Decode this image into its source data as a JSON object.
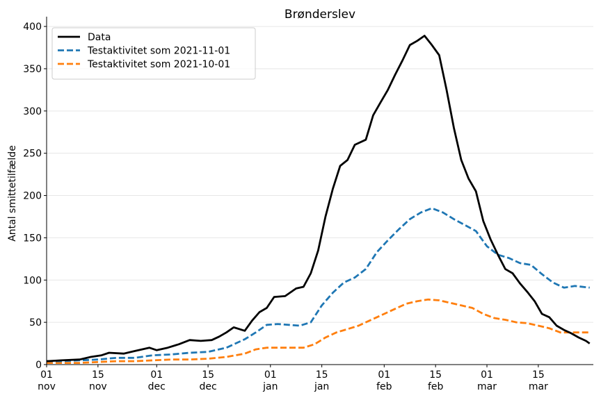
{
  "chart_data": {
    "type": "line",
    "title": "Brønderslev",
    "ylabel": "Antal smittetilfælde",
    "xlabel": "",
    "xlim": [
      "2021-11-01",
      "2022-03-30"
    ],
    "ylim": [
      0,
      405
    ],
    "yticks": [
      0,
      50,
      100,
      150,
      200,
      250,
      300,
      350,
      400
    ],
    "xticks": [
      {
        "date": "2021-11-01",
        "day": "01",
        "month": "nov"
      },
      {
        "date": "2021-11-15",
        "day": "15",
        "month": "nov"
      },
      {
        "date": "2021-12-01",
        "day": "01",
        "month": "dec"
      },
      {
        "date": "2021-12-15",
        "day": "15",
        "month": "dec"
      },
      {
        "date": "2022-01-01",
        "day": "01",
        "month": "jan"
      },
      {
        "date": "2022-01-15",
        "day": "15",
        "month": "jan"
      },
      {
        "date": "2022-02-01",
        "day": "01",
        "month": "feb"
      },
      {
        "date": "2022-02-15",
        "day": "15",
        "month": "feb"
      },
      {
        "date": "2022-03-01",
        "day": "01",
        "month": "mar"
      },
      {
        "date": "2022-03-15",
        "day": "15",
        "month": "mar"
      }
    ],
    "grid": "horizontal",
    "legend_position": "top-left",
    "series": [
      {
        "name": "Data",
        "color": "#000000",
        "style": "solid",
        "points": [
          [
            "2021-11-01",
            4
          ],
          [
            "2021-11-05",
            5
          ],
          [
            "2021-11-10",
            6
          ],
          [
            "2021-11-13",
            9
          ],
          [
            "2021-11-16",
            11
          ],
          [
            "2021-11-18",
            14
          ],
          [
            "2021-11-22",
            13
          ],
          [
            "2021-11-25",
            16
          ],
          [
            "2021-11-29",
            20
          ],
          [
            "2021-12-01",
            17
          ],
          [
            "2021-12-04",
            20
          ],
          [
            "2021-12-07",
            24
          ],
          [
            "2021-12-10",
            29
          ],
          [
            "2021-12-13",
            28
          ],
          [
            "2021-12-16",
            29
          ],
          [
            "2021-12-18",
            33
          ],
          [
            "2021-12-20",
            38
          ],
          [
            "2021-12-22",
            44
          ],
          [
            "2021-12-25",
            40
          ],
          [
            "2021-12-27",
            52
          ],
          [
            "2021-12-29",
            62
          ],
          [
            "2021-12-31",
            67
          ],
          [
            "2022-01-02",
            80
          ],
          [
            "2022-01-05",
            81
          ],
          [
            "2022-01-08",
            90
          ],
          [
            "2022-01-10",
            92
          ],
          [
            "2022-01-12",
            108
          ],
          [
            "2022-01-14",
            135
          ],
          [
            "2022-01-16",
            175
          ],
          [
            "2022-01-18",
            208
          ],
          [
            "2022-01-20",
            235
          ],
          [
            "2022-01-22",
            242
          ],
          [
            "2022-01-24",
            260
          ],
          [
            "2022-01-27",
            266
          ],
          [
            "2022-01-29",
            295
          ],
          [
            "2022-01-31",
            310
          ],
          [
            "2022-02-02",
            325
          ],
          [
            "2022-02-04",
            343
          ],
          [
            "2022-02-06",
            360
          ],
          [
            "2022-02-08",
            378
          ],
          [
            "2022-02-10",
            383
          ],
          [
            "2022-02-12",
            389
          ],
          [
            "2022-02-14",
            378
          ],
          [
            "2022-02-16",
            366
          ],
          [
            "2022-02-18",
            325
          ],
          [
            "2022-02-20",
            280
          ],
          [
            "2022-02-22",
            242
          ],
          [
            "2022-02-24",
            220
          ],
          [
            "2022-02-26",
            205
          ],
          [
            "2022-02-28",
            170
          ],
          [
            "2022-03-02",
            148
          ],
          [
            "2022-03-04",
            130
          ],
          [
            "2022-03-06",
            113
          ],
          [
            "2022-03-08",
            108
          ],
          [
            "2022-03-10",
            96
          ],
          [
            "2022-03-12",
            86
          ],
          [
            "2022-03-14",
            75
          ],
          [
            "2022-03-16",
            60
          ],
          [
            "2022-03-18",
            56
          ],
          [
            "2022-03-20",
            46
          ],
          [
            "2022-03-22",
            41
          ],
          [
            "2022-03-24",
            37
          ],
          [
            "2022-03-26",
            32
          ],
          [
            "2022-03-28",
            28
          ],
          [
            "2022-03-29",
            25
          ]
        ]
      },
      {
        "name": "Testaktivitet som 2021-11-01",
        "color": "#1f77b4",
        "style": "dashed",
        "points": [
          [
            "2021-11-01",
            4
          ],
          [
            "2021-11-05",
            4
          ],
          [
            "2021-11-10",
            5
          ],
          [
            "2021-11-15",
            6
          ],
          [
            "2021-11-20",
            8
          ],
          [
            "2021-11-25",
            8
          ],
          [
            "2021-11-30",
            11
          ],
          [
            "2021-12-05",
            12
          ],
          [
            "2021-12-10",
            14
          ],
          [
            "2021-12-15",
            15
          ],
          [
            "2021-12-20",
            20
          ],
          [
            "2021-12-25",
            30
          ],
          [
            "2021-12-28",
            38
          ],
          [
            "2021-12-31",
            47
          ],
          [
            "2022-01-03",
            48
          ],
          [
            "2022-01-06",
            47
          ],
          [
            "2022-01-09",
            46
          ],
          [
            "2022-01-12",
            50
          ],
          [
            "2022-01-15",
            70
          ],
          [
            "2022-01-18",
            85
          ],
          [
            "2022-01-21",
            97
          ],
          [
            "2022-01-24",
            103
          ],
          [
            "2022-01-27",
            113
          ],
          [
            "2022-01-30",
            133
          ],
          [
            "2022-02-02",
            147
          ],
          [
            "2022-02-05",
            160
          ],
          [
            "2022-02-08",
            172
          ],
          [
            "2022-02-11",
            180
          ],
          [
            "2022-02-14",
            185
          ],
          [
            "2022-02-17",
            180
          ],
          [
            "2022-02-20",
            172
          ],
          [
            "2022-02-23",
            165
          ],
          [
            "2022-02-26",
            158
          ],
          [
            "2022-03-01",
            140
          ],
          [
            "2022-03-04",
            130
          ],
          [
            "2022-03-07",
            126
          ],
          [
            "2022-03-10",
            120
          ],
          [
            "2022-03-13",
            118
          ],
          [
            "2022-03-16",
            107
          ],
          [
            "2022-03-19",
            97
          ],
          [
            "2022-03-22",
            91
          ],
          [
            "2022-03-25",
            93
          ],
          [
            "2022-03-29",
            91
          ]
        ]
      },
      {
        "name": "Testaktivitet som 2021-10-01",
        "color": "#ff7f0e",
        "style": "dashed",
        "points": [
          [
            "2021-11-01",
            2
          ],
          [
            "2021-11-10",
            2
          ],
          [
            "2021-11-15",
            3
          ],
          [
            "2021-11-20",
            4
          ],
          [
            "2021-11-25",
            4
          ],
          [
            "2021-11-30",
            5
          ],
          [
            "2021-12-05",
            6
          ],
          [
            "2021-12-10",
            6
          ],
          [
            "2021-12-15",
            7
          ],
          [
            "2021-12-20",
            9
          ],
          [
            "2021-12-25",
            13
          ],
          [
            "2021-12-28",
            18
          ],
          [
            "2021-12-31",
            20
          ],
          [
            "2022-01-05",
            20
          ],
          [
            "2022-01-10",
            20
          ],
          [
            "2022-01-13",
            24
          ],
          [
            "2022-01-16",
            32
          ],
          [
            "2022-01-19",
            38
          ],
          [
            "2022-01-22",
            42
          ],
          [
            "2022-01-25",
            46
          ],
          [
            "2022-01-28",
            52
          ],
          [
            "2022-02-01",
            60
          ],
          [
            "2022-02-04",
            66
          ],
          [
            "2022-02-07",
            72
          ],
          [
            "2022-02-10",
            75
          ],
          [
            "2022-02-13",
            77
          ],
          [
            "2022-02-16",
            76
          ],
          [
            "2022-02-19",
            73
          ],
          [
            "2022-02-22",
            70
          ],
          [
            "2022-02-25",
            67
          ],
          [
            "2022-02-28",
            60
          ],
          [
            "2022-03-03",
            55
          ],
          [
            "2022-03-06",
            53
          ],
          [
            "2022-03-09",
            50
          ],
          [
            "2022-03-12",
            49
          ],
          [
            "2022-03-15",
            46
          ],
          [
            "2022-03-18",
            43
          ],
          [
            "2022-03-21",
            38
          ],
          [
            "2022-03-25",
            38
          ],
          [
            "2022-03-29",
            38
          ]
        ]
      }
    ]
  }
}
